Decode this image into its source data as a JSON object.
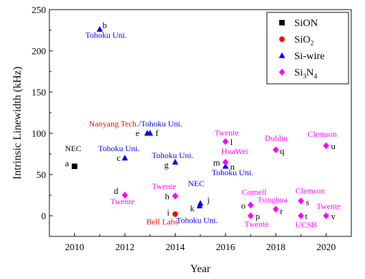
{
  "chart_data": {
    "type": "scatter",
    "xlabel": "Year",
    "ylabel": "Intrinsic Linewidth (kHz)",
    "xlim": [
      2009,
      2021
    ],
    "ylim": [
      -25,
      250
    ],
    "xticks": [
      2010,
      2012,
      2014,
      2016,
      2018,
      2020
    ],
    "yticks": [
      0,
      50,
      100,
      150,
      200,
      250
    ],
    "xtick_labels": [
      "2010",
      "2012",
      "2014",
      "2016",
      "2018",
      "2020"
    ],
    "ytick_labels": [
      "0",
      "50",
      "100",
      "150",
      "200",
      "250"
    ],
    "grid": false,
    "legend_position": "top-right",
    "series": [
      {
        "key": "sion",
        "legend_base": "SiON",
        "legend_sub": "",
        "legend_tail": "",
        "marker": "square",
        "color": "#000000",
        "points": [
          {
            "id": "a",
            "x": 2010,
            "y": 60,
            "letter": "a",
            "label": "NEC",
            "label_color": "#000000"
          }
        ]
      },
      {
        "key": "sio2",
        "legend_base": "SiO",
        "legend_sub": "2",
        "legend_tail": "",
        "marker": "circle",
        "color": "#ff0000",
        "points": [
          {
            "id": "i",
            "x": 2014,
            "y": 2,
            "letter": "i",
            "label": "Bell Labs",
            "label_color": "#ff0000"
          }
        ]
      },
      {
        "key": "siwire",
        "legend_base": "Si-wire",
        "legend_sub": "",
        "legend_tail": "",
        "marker": "triangle",
        "color": "#0000ff",
        "points": [
          {
            "id": "b",
            "x": 2011,
            "y": 226,
            "letter": "b",
            "label": "Tohoku Uni.",
            "label_color": "#0000ff"
          },
          {
            "id": "c",
            "x": 2012,
            "y": 70,
            "letter": "c",
            "label": "Tohoku Uni.",
            "label_color": "#0000ff"
          },
          {
            "id": "e",
            "x": 2013,
            "y": 100,
            "letter": "e",
            "label": "",
            "label_color": "#0000ff"
          },
          {
            "id": "f",
            "x": 2013,
            "y": 100,
            "letter": "f",
            "label": "",
            "label_color": "#0000ff"
          },
          {
            "id": "g",
            "x": 2014,
            "y": 65,
            "letter": "g",
            "label": "Tohoku Uni.",
            "label_color": "#0000ff"
          },
          {
            "id": "j",
            "x": 2015,
            "y": 15,
            "letter": "j",
            "label": "NEC",
            "label_color": "#0000ff"
          },
          {
            "id": "k",
            "x": 2015,
            "y": 12,
            "letter": "k",
            "label": "Tohoku Uni.",
            "label_color": "#0000ff"
          },
          {
            "id": "n",
            "x": 2016,
            "y": 60,
            "letter": "n",
            "label": "Tohoku Uni.",
            "label_color": "#0000ff"
          }
        ]
      },
      {
        "key": "si3n4",
        "legend_base": "Si",
        "legend_sub": "3",
        "legend_tail": "N",
        "legend_sub2": "4",
        "marker": "diamond",
        "color": "#ff00ff",
        "points": [
          {
            "id": "d",
            "x": 2012,
            "y": 25,
            "letter": "d",
            "label": "Twente",
            "label_color": "#ff00ff"
          },
          {
            "id": "h",
            "x": 2014,
            "y": 24,
            "letter": "h",
            "label": "Twente",
            "label_color": "#ff00ff"
          },
          {
            "id": "l",
            "x": 2016,
            "y": 90,
            "letter": "l",
            "label": "Twente",
            "label_color": "#ff00ff"
          },
          {
            "id": "m",
            "x": 2016,
            "y": 65,
            "letter": "m",
            "label": "HuaWei",
            "label_color": "#ff00ff"
          },
          {
            "id": "o",
            "x": 2017,
            "y": 13,
            "letter": "o",
            "label": "Cornell",
            "label_color": "#ff00ff"
          },
          {
            "id": "p",
            "x": 2017,
            "y": 0,
            "letter": "p",
            "label": "Twente",
            "label_color": "#ff00ff"
          },
          {
            "id": "q",
            "x": 2018,
            "y": 80,
            "letter": "q",
            "label": "Dublin",
            "label_color": "#ff00ff"
          },
          {
            "id": "r",
            "x": 2018,
            "y": 8,
            "letter": "r",
            "label": "Tsinghua",
            "label_color": "#ff00ff"
          },
          {
            "id": "s",
            "x": 2019,
            "y": 18,
            "letter": "s",
            "label": "Clemson",
            "label_color": "#ff00ff"
          },
          {
            "id": "t",
            "x": 2019,
            "y": 0,
            "letter": "t",
            "label": "UCSB",
            "label_color": "#ff00ff"
          },
          {
            "id": "u",
            "x": 2020,
            "y": 85,
            "letter": "u",
            "label": "Clemson",
            "label_color": "#ff00ff"
          },
          {
            "id": "v",
            "x": 2020,
            "y": 0,
            "letter": "v",
            "label": "Twente",
            "label_color": "#ff00ff"
          }
        ]
      }
    ],
    "annotations": [
      {
        "id": "nanyang",
        "x": 2013,
        "y": 100,
        "text_a": "Nanyang Tech.",
        "color_a": "#ff0000",
        "text_b": "/Tohoku Uni.",
        "color_b": "#0000ff"
      }
    ]
  }
}
